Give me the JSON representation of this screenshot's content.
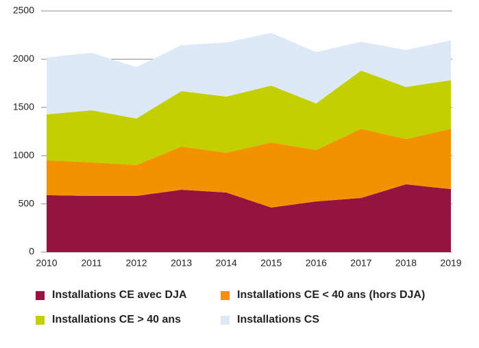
{
  "chart_data": {
    "type": "stacked_area",
    "x": [
      2010,
      2011,
      2012,
      2013,
      2014,
      2015,
      2016,
      2017,
      2018,
      2019
    ],
    "series": [
      {
        "name": "Installations CE avec DJA",
        "color": "#97133f",
        "values": [
          590,
          582,
          582,
          646,
          618,
          462,
          526,
          561,
          703,
          653
        ]
      },
      {
        "name": "Installations CE < 40 ans (hors DJA)",
        "color": "#f39200",
        "values": [
          362,
          348,
          320,
          448,
          412,
          674,
          532,
          717,
          469,
          625
        ]
      },
      {
        "name": "Installations CE > 40 ans",
        "color": "#c2cf00",
        "values": [
          476,
          540,
          483,
          575,
          582,
          590,
          483,
          604,
          540,
          505
        ]
      },
      {
        "name": "Installations CS",
        "color": "#dde9f7",
        "values": [
          589,
          597,
          533,
          476,
          561,
          547,
          533,
          298,
          383,
          412
        ]
      }
    ],
    "xlim": [
      2010,
      2019
    ],
    "xticks": [
      2010,
      2011,
      2012,
      2013,
      2014,
      2015,
      2016,
      2017,
      2018,
      2019
    ],
    "ylim": [
      0,
      2500
    ],
    "yticks": [
      0,
      500,
      1000,
      1500,
      2000,
      2500
    ],
    "grid": true
  }
}
